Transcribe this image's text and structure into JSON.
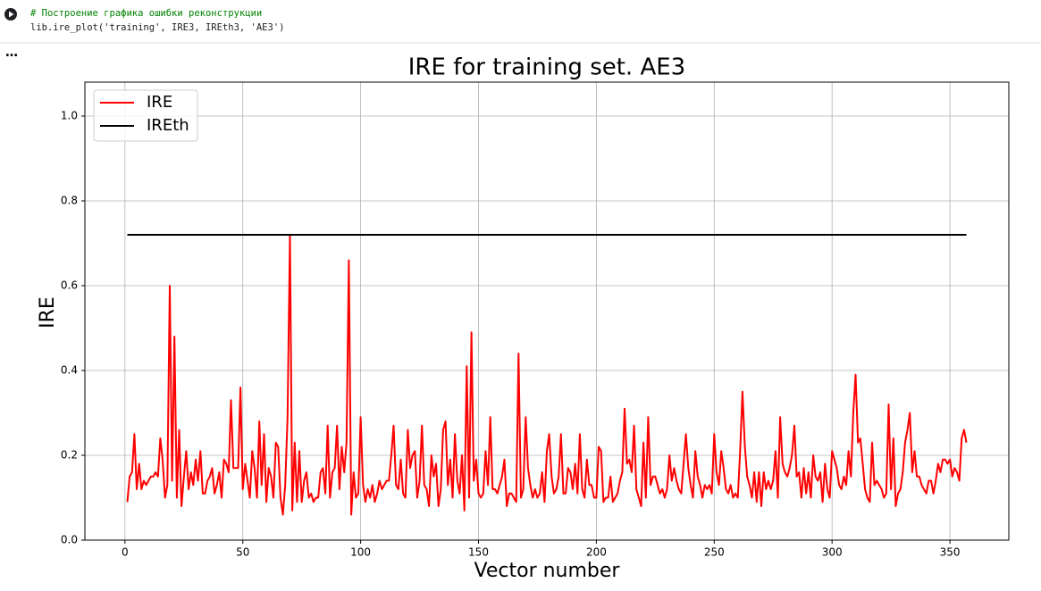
{
  "cell": {
    "code": [
      "# Построение графика ошибки реконструкции",
      "lib.ire_plot('training', IRE3, IREth3, 'AE3')"
    ],
    "output_marker": "…"
  },
  "chart_data": {
    "type": "line",
    "title": "IRE for training set. AE3",
    "x_label": "Vector number",
    "y_label": "IRE",
    "xlim": [
      -17,
      375
    ],
    "ylim": [
      0,
      1.08
    ],
    "xticks": [
      0,
      50,
      100,
      150,
      200,
      250,
      300,
      350
    ],
    "yticks": [
      {
        "value": 0,
        "label": "0.0"
      },
      0.2,
      0.4,
      0.6,
      0.8,
      {
        "value": 1,
        "label": "1.0"
      }
    ],
    "grid": true,
    "legend": "upper-left",
    "series": [
      {
        "name": "IRE",
        "color": "#ff0000",
        "x": [
          1,
          2,
          3,
          4,
          5,
          6,
          7,
          8,
          9,
          10,
          11,
          12,
          13,
          14,
          15,
          16,
          17,
          18,
          19,
          20,
          21,
          22,
          23,
          24,
          25,
          26,
          27,
          28,
          29,
          30,
          31,
          32,
          33,
          34,
          35,
          36,
          37,
          38,
          39,
          40,
          41,
          42,
          43,
          44,
          45,
          46,
          47,
          48,
          49,
          50,
          51,
          52,
          53,
          54,
          55,
          56,
          57,
          58,
          59,
          60,
          61,
          62,
          63,
          64,
          65,
          66,
          67,
          68,
          69,
          70,
          71,
          72,
          73,
          74,
          75,
          76,
          77,
          78,
          79,
          80,
          81,
          82,
          83,
          84,
          85,
          86,
          87,
          88,
          89,
          90,
          91,
          92,
          93,
          94,
          95,
          96,
          97,
          98,
          99,
          100,
          101,
          102,
          103,
          104,
          105,
          106,
          107,
          108,
          109,
          110,
          111,
          112,
          113,
          114,
          115,
          116,
          117,
          118,
          119,
          120,
          121,
          122,
          123,
          124,
          125,
          126,
          127,
          128,
          129,
          130,
          131,
          132,
          133,
          134,
          135,
          136,
          137,
          138,
          139,
          140,
          141,
          142,
          143,
          144,
          145,
          146,
          147,
          148,
          149,
          150,
          151,
          152,
          153,
          154,
          155,
          156,
          157,
          158,
          159,
          160,
          161,
          162,
          163,
          164,
          165,
          166,
          167,
          168,
          169,
          170,
          171,
          172,
          173,
          174,
          175,
          176,
          177,
          178,
          179,
          180,
          181,
          182,
          183,
          184,
          185,
          186,
          187,
          188,
          189,
          190,
          191,
          192,
          193,
          194,
          195,
          196,
          197,
          198,
          199,
          200,
          201,
          202,
          203,
          204,
          205,
          206,
          207,
          208,
          209,
          210,
          211,
          212,
          213,
          214,
          215,
          216,
          217,
          218,
          219,
          220,
          221,
          222,
          223,
          224,
          225,
          226,
          227,
          228,
          229,
          230,
          231,
          232,
          233,
          234,
          235,
          236,
          237,
          238,
          239,
          240,
          241,
          242,
          243,
          244,
          245,
          246,
          247,
          248,
          249,
          250,
          251,
          252,
          253,
          254,
          255,
          256,
          257,
          258,
          259,
          260,
          261,
          262,
          263,
          264,
          265,
          266,
          267,
          268,
          269,
          270,
          271,
          272,
          273,
          274,
          275,
          276,
          277,
          278,
          279,
          280,
          281,
          282,
          283,
          284,
          285,
          286,
          287,
          288,
          289,
          290,
          291,
          292,
          293,
          294,
          295,
          296,
          297,
          298,
          299,
          300,
          301,
          302,
          303,
          304,
          305,
          306,
          307,
          308,
          309,
          310,
          311,
          312,
          313,
          314,
          315,
          316,
          317,
          318,
          319,
          320,
          321,
          322,
          323,
          324,
          325,
          326,
          327,
          328,
          329,
          330,
          331,
          332,
          333,
          334,
          335,
          336,
          337,
          338,
          339,
          340,
          341,
          342,
          343,
          344,
          345,
          346,
          347,
          348,
          349,
          350,
          351,
          352,
          353,
          354,
          355,
          356,
          357
        ],
        "values": [
          0.09,
          0.15,
          0.16,
          0.25,
          0.12,
          0.18,
          0.12,
          0.14,
          0.13,
          0.14,
          0.15,
          0.15,
          0.16,
          0.15,
          0.24,
          0.19,
          0.1,
          0.13,
          0.6,
          0.14,
          0.48,
          0.1,
          0.26,
          0.08,
          0.15,
          0.21,
          0.12,
          0.16,
          0.13,
          0.19,
          0.14,
          0.21,
          0.11,
          0.11,
          0.14,
          0.15,
          0.17,
          0.11,
          0.13,
          0.16,
          0.1,
          0.19,
          0.18,
          0.16,
          0.33,
          0.17,
          0.17,
          0.17,
          0.36,
          0.12,
          0.18,
          0.14,
          0.1,
          0.21,
          0.17,
          0.1,
          0.28,
          0.13,
          0.25,
          0.09,
          0.17,
          0.15,
          0.1,
          0.23,
          0.22,
          0.1,
          0.06,
          0.13,
          0.29,
          0.72,
          0.07,
          0.23,
          0.09,
          0.21,
          0.09,
          0.14,
          0.16,
          0.1,
          0.11,
          0.09,
          0.1,
          0.1,
          0.16,
          0.17,
          0.11,
          0.27,
          0.1,
          0.16,
          0.17,
          0.27,
          0.12,
          0.22,
          0.16,
          0.23,
          0.66,
          0.06,
          0.16,
          0.1,
          0.11,
          0.29,
          0.13,
          0.09,
          0.12,
          0.1,
          0.13,
          0.09,
          0.11,
          0.14,
          0.12,
          0.13,
          0.14,
          0.14,
          0.2,
          0.27,
          0.13,
          0.12,
          0.19,
          0.11,
          0.1,
          0.26,
          0.17,
          0.2,
          0.21,
          0.1,
          0.14,
          0.27,
          0.13,
          0.12,
          0.08,
          0.2,
          0.15,
          0.18,
          0.08,
          0.12,
          0.26,
          0.28,
          0.13,
          0.19,
          0.1,
          0.25,
          0.14,
          0.11,
          0.2,
          0.07,
          0.41,
          0.1,
          0.49,
          0.14,
          0.19,
          0.11,
          0.1,
          0.11,
          0.21,
          0.13,
          0.29,
          0.12,
          0.12,
          0.11,
          0.13,
          0.15,
          0.19,
          0.08,
          0.11,
          0.11,
          0.1,
          0.09,
          0.44,
          0.1,
          0.12,
          0.29,
          0.17,
          0.13,
          0.1,
          0.12,
          0.1,
          0.11,
          0.16,
          0.09,
          0.21,
          0.25,
          0.15,
          0.11,
          0.12,
          0.15,
          0.25,
          0.11,
          0.11,
          0.17,
          0.16,
          0.12,
          0.18,
          0.11,
          0.25,
          0.12,
          0.1,
          0.19,
          0.13,
          0.13,
          0.1,
          0.1,
          0.22,
          0.21,
          0.09,
          0.1,
          0.1,
          0.15,
          0.09,
          0.1,
          0.11,
          0.14,
          0.16,
          0.31,
          0.18,
          0.19,
          0.16,
          0.27,
          0.12,
          0.1,
          0.08,
          0.23,
          0.1,
          0.29,
          0.13,
          0.15,
          0.15,
          0.13,
          0.11,
          0.12,
          0.1,
          0.12,
          0.2,
          0.14,
          0.17,
          0.14,
          0.12,
          0.11,
          0.18,
          0.25,
          0.17,
          0.13,
          0.1,
          0.21,
          0.15,
          0.13,
          0.1,
          0.13,
          0.12,
          0.13,
          0.11,
          0.25,
          0.16,
          0.13,
          0.21,
          0.17,
          0.12,
          0.11,
          0.13,
          0.1,
          0.11,
          0.1,
          0.21,
          0.35,
          0.22,
          0.15,
          0.13,
          0.1,
          0.16,
          0.09,
          0.16,
          0.08,
          0.16,
          0.12,
          0.14,
          0.12,
          0.14,
          0.21,
          0.1,
          0.29,
          0.18,
          0.16,
          0.15,
          0.17,
          0.2,
          0.27,
          0.15,
          0.16,
          0.1,
          0.17,
          0.11,
          0.16,
          0.1,
          0.2,
          0.15,
          0.14,
          0.16,
          0.09,
          0.18,
          0.12,
          0.1,
          0.21,
          0.19,
          0.17,
          0.13,
          0.12,
          0.15,
          0.13,
          0.21,
          0.15,
          0.3,
          0.39,
          0.23,
          0.24,
          0.18,
          0.12,
          0.1,
          0.09,
          0.23,
          0.13,
          0.14,
          0.13,
          0.12,
          0.1,
          0.11,
          0.32,
          0.12,
          0.24,
          0.08,
          0.11,
          0.12,
          0.16,
          0.23,
          0.26,
          0.3,
          0.16,
          0.21,
          0.15,
          0.15,
          0.13,
          0.12,
          0.11,
          0.14,
          0.14,
          0.11,
          0.14,
          0.18,
          0.16,
          0.19,
          0.19,
          0.18,
          0.19,
          0.15,
          0.17,
          0.16,
          0.14,
          0.24,
          0.26,
          0.23
        ]
      },
      {
        "name": "IREth",
        "color": "#000000",
        "x": [
          1,
          357
        ],
        "values": [
          0.72,
          0.72
        ]
      }
    ]
  }
}
